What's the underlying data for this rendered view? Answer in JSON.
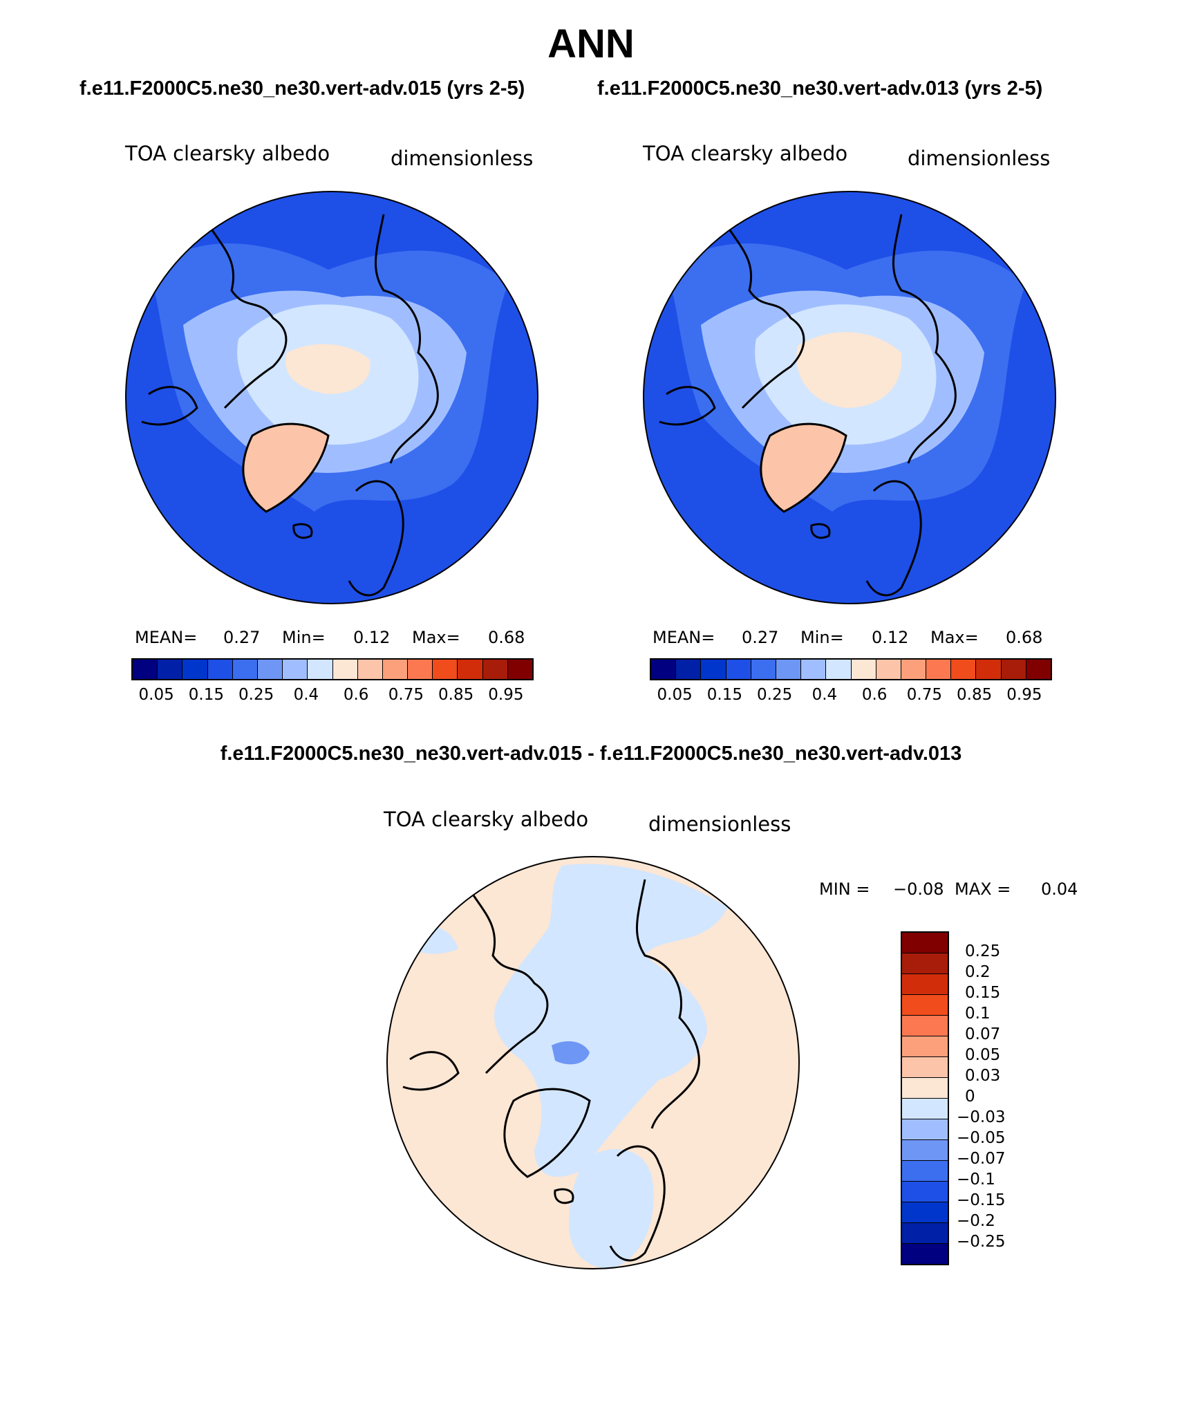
{
  "title": "ANN",
  "case_titles": {
    "left": "f.e11.F2000C5.ne30_ne30.vert-adv.015 (yrs 2-5)",
    "right": "f.e11.F2000C5.ne30_ne30.vert-adv.013 (yrs 2-5)"
  },
  "panels": [
    {
      "variable": "TOA clearsky albedo",
      "units": "dimensionless",
      "mean_label": "MEAN=",
      "mean": "0.27",
      "min_label": "Min=",
      "min": "0.12",
      "max_label": "Max=",
      "max": "0.68"
    },
    {
      "variable": "TOA clearsky albedo",
      "units": "dimensionless",
      "mean_label": "MEAN=",
      "mean": "0.27",
      "min_label": "Min=",
      "min": "0.12",
      "max_label": "Max=",
      "max": "0.68"
    }
  ],
  "diff": {
    "title": "f.e11.F2000C5.ne30_ne30.vert-adv.015 - f.e11.F2000C5.ne30_ne30.vert-adv.013",
    "variable": "TOA clearsky albedo",
    "units": "dimensionless",
    "min_label": "MIN =",
    "min": "−0.08",
    "max_label": "MAX =",
    "max": "0.04"
  },
  "colorbar_abs": {
    "colors": [
      "#000080",
      "#0020a8",
      "#0036cc",
      "#1e50e8",
      "#3c6ef0",
      "#6e96f4",
      "#a0beff",
      "#d2e6ff",
      "#fce6d4",
      "#fcc4a8",
      "#fca07c",
      "#fc7850",
      "#f04c1c",
      "#d22d0a",
      "#a81c0a",
      "#800000"
    ],
    "tick_labels": [
      "0.05",
      "0.15",
      "0.25",
      "0.4",
      "0.6",
      "0.75",
      "0.85",
      "0.95"
    ]
  },
  "colorbar_diff": {
    "colors": [
      "#800000",
      "#a81c0a",
      "#d22d0a",
      "#f04c1c",
      "#fc7850",
      "#fca07c",
      "#fcc4a8",
      "#fce6d4",
      "#d2e6ff",
      "#a0beff",
      "#6e96f4",
      "#3c6ef0",
      "#1e50e8",
      "#0036cc",
      "#0020a8",
      "#000080"
    ],
    "tick_labels": [
      "0.25",
      "0.2",
      "0.15",
      "0.1",
      "0.07",
      "0.05",
      "0.03",
      "0",
      "−0.03",
      "−0.05",
      "−0.07",
      "−0.1",
      "−0.15",
      "−0.2",
      "−0.25"
    ]
  },
  "chart_data": [
    {
      "type": "heatmap",
      "title": "TOA clearsky albedo",
      "case": "f.e11.F2000C5.ne30_ne30.vert-adv.015 (yrs 2-5)",
      "projection": "polar stereographic, North Pole",
      "units": "dimensionless",
      "levels": [
        0.05,
        0.1,
        0.15,
        0.2,
        0.25,
        0.3,
        0.4,
        0.5,
        0.6,
        0.7,
        0.75,
        0.8,
        0.85,
        0.9,
        0.95
      ],
      "mean": 0.27,
      "min": 0.12,
      "max": 0.68
    },
    {
      "type": "heatmap",
      "title": "TOA clearsky albedo",
      "case": "f.e11.F2000C5.ne30_ne30.vert-adv.013 (yrs 2-5)",
      "projection": "polar stereographic, North Pole",
      "units": "dimensionless",
      "levels": [
        0.05,
        0.1,
        0.15,
        0.2,
        0.25,
        0.3,
        0.4,
        0.5,
        0.6,
        0.7,
        0.75,
        0.8,
        0.85,
        0.9,
        0.95
      ],
      "mean": 0.27,
      "min": 0.12,
      "max": 0.68
    },
    {
      "type": "heatmap",
      "title": "TOA clearsky albedo (difference)",
      "case": "f.e11.F2000C5.ne30_ne30.vert-adv.015 - f.e11.F2000C5.ne30_ne30.vert-adv.013",
      "projection": "polar stereographic, North Pole",
      "units": "dimensionless",
      "levels": [
        -0.25,
        -0.2,
        -0.15,
        -0.1,
        -0.07,
        -0.05,
        -0.03,
        0,
        0.03,
        0.05,
        0.07,
        0.1,
        0.15,
        0.2,
        0.25
      ],
      "min": -0.08,
      "max": 0.04
    }
  ]
}
